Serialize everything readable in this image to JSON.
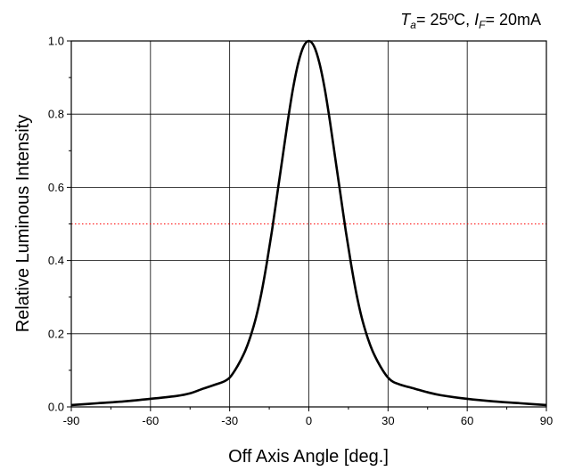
{
  "chart_data": {
    "type": "line",
    "title": "",
    "conditions": {
      "ta_symbol": "T",
      "ta_sub": "a",
      "ta_value": "= 25ºC,",
      "if_symbol": "I",
      "if_sub": "F",
      "if_value": "= 20mA"
    },
    "xlabel": "Off Axis Angle [deg.]",
    "ylabel": "Relative Luminous Intensity",
    "xlim": [
      -90,
      90
    ],
    "ylim": [
      0,
      1.0
    ],
    "x_ticks": [
      -90,
      -60,
      -30,
      0,
      30,
      60,
      90
    ],
    "x_tick_labels": [
      "-90",
      "-60",
      "-30",
      "0",
      "30",
      "60",
      "90"
    ],
    "y_ticks": [
      0,
      0.2,
      0.4,
      0.6,
      0.8,
      1.0
    ],
    "y_tick_labels": [
      "0.0",
      "0.2",
      "0.4",
      "0.6",
      "0.8",
      "1.0"
    ],
    "grid": true,
    "reference_line": {
      "y": 0.5,
      "color": "#ff0000",
      "style": "dotted"
    },
    "series": [
      {
        "color": "#000000",
        "x": [
          -90,
          -80,
          -70,
          -60,
          -50,
          -45,
          -40,
          -35,
          -32,
          -30,
          -28,
          -26,
          -24,
          -22,
          -20,
          -18,
          -16,
          -14,
          -12,
          -10,
          -8,
          -6,
          -4,
          -2,
          0,
          2,
          4,
          6,
          8,
          10,
          12,
          14,
          16,
          18,
          20,
          22,
          24,
          26,
          28,
          30,
          32,
          35,
          40,
          45,
          50,
          60,
          70,
          80,
          90
        ],
        "y": [
          0.005,
          0.01,
          0.015,
          0.022,
          0.03,
          0.037,
          0.05,
          0.062,
          0.07,
          0.08,
          0.1,
          0.125,
          0.155,
          0.195,
          0.245,
          0.31,
          0.39,
          0.48,
          0.58,
          0.68,
          0.78,
          0.87,
          0.94,
          0.985,
          1.0,
          0.985,
          0.94,
          0.87,
          0.78,
          0.68,
          0.58,
          0.48,
          0.39,
          0.31,
          0.245,
          0.195,
          0.155,
          0.125,
          0.1,
          0.08,
          0.068,
          0.06,
          0.05,
          0.04,
          0.032,
          0.022,
          0.015,
          0.01,
          0.005
        ]
      }
    ]
  }
}
